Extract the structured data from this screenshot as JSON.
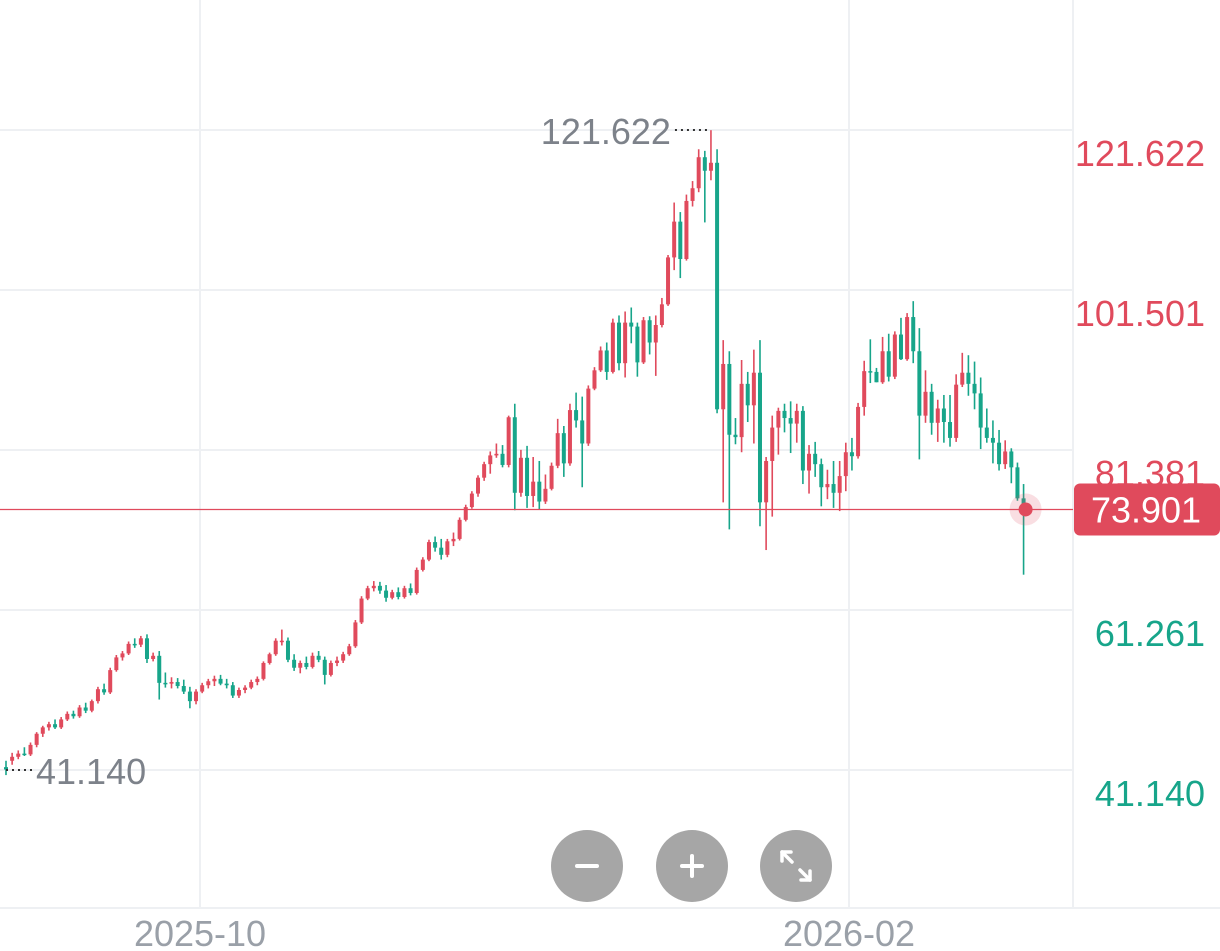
{
  "chart_data": {
    "type": "candlestick",
    "y_axis": {
      "ticks": [
        121.622,
        101.501,
        81.381,
        61.261,
        41.14
      ],
      "tick_labels": [
        "121.622",
        "101.501",
        "81.381",
        "61.261",
        "41.140"
      ],
      "grid": true
    },
    "x_axis": {
      "ticks": [
        "2025-10",
        "2026-02"
      ],
      "grid": true
    },
    "current_price": {
      "value": 73.901,
      "label": "73.901"
    },
    "max_marker": {
      "value": 121.622,
      "label": "121.622"
    },
    "min_marker": {
      "value": 41.14,
      "label": "41.140"
    },
    "up_color": "#e04a5c",
    "down_color": "#17a58a",
    "candles": [
      [
        41.5,
        42.3,
        40.5,
        41.2
      ],
      [
        42.3,
        43.3,
        41.8,
        42.8
      ],
      [
        42.8,
        43.6,
        42.5,
        43.2
      ],
      [
        43.2,
        44.0,
        42.9,
        43.1
      ],
      [
        43.1,
        44.6,
        42.9,
        44.3
      ],
      [
        44.3,
        45.9,
        44.0,
        45.7
      ],
      [
        45.7,
        46.7,
        45.3,
        46.5
      ],
      [
        46.5,
        47.2,
        46.1,
        46.9
      ],
      [
        46.9,
        47.5,
        46.3,
        46.5
      ],
      [
        46.5,
        47.8,
        46.3,
        47.5
      ],
      [
        47.5,
        48.5,
        47.3,
        48.2
      ],
      [
        48.2,
        48.6,
        47.6,
        47.9
      ],
      [
        47.9,
        49.3,
        47.7,
        49.0
      ],
      [
        49.0,
        49.6,
        48.3,
        48.6
      ],
      [
        48.6,
        50.0,
        48.4,
        49.8
      ],
      [
        49.8,
        51.6,
        49.5,
        51.3
      ],
      [
        51.3,
        52.0,
        50.6,
        50.9
      ],
      [
        50.9,
        54.0,
        50.7,
        53.7
      ],
      [
        53.7,
        55.6,
        53.5,
        55.3
      ],
      [
        55.3,
        56.1,
        54.9,
        55.8
      ],
      [
        55.8,
        57.3,
        55.6,
        57.0
      ],
      [
        57.0,
        57.7,
        56.5,
        56.9
      ],
      [
        56.9,
        58.0,
        56.6,
        57.7
      ],
      [
        57.7,
        58.2,
        54.6,
        55.1
      ],
      [
        55.1,
        55.9,
        54.8,
        55.5
      ],
      [
        55.5,
        56.1,
        50.0,
        52.1
      ],
      [
        52.1,
        53.4,
        51.5,
        52.0
      ],
      [
        52.0,
        52.8,
        51.4,
        52.2
      ],
      [
        52.2,
        52.7,
        51.4,
        51.7
      ],
      [
        51.7,
        52.5,
        50.7,
        51.0
      ],
      [
        51.0,
        51.6,
        48.9,
        49.8
      ],
      [
        49.8,
        51.3,
        49.4,
        51.0
      ],
      [
        51.0,
        52.1,
        50.8,
        51.8
      ],
      [
        51.8,
        52.6,
        51.4,
        52.3
      ],
      [
        52.3,
        53.0,
        51.7,
        52.6
      ],
      [
        52.6,
        53.1,
        51.8,
        52.0
      ],
      [
        52.0,
        52.6,
        51.4,
        51.8
      ],
      [
        51.8,
        52.2,
        50.2,
        50.5
      ],
      [
        50.5,
        51.5,
        50.2,
        51.2
      ],
      [
        51.2,
        51.8,
        50.8,
        51.5
      ],
      [
        51.5,
        52.5,
        51.3,
        52.2
      ],
      [
        52.2,
        52.9,
        51.8,
        52.6
      ],
      [
        52.6,
        54.8,
        52.4,
        54.6
      ],
      [
        54.6,
        55.9,
        54.4,
        55.7
      ],
      [
        55.7,
        57.7,
        55.5,
        57.4
      ],
      [
        57.4,
        58.8,
        56.8,
        57.4
      ],
      [
        57.4,
        57.8,
        54.7,
        55.0
      ],
      [
        55.0,
        55.7,
        53.6,
        54.0
      ],
      [
        54.0,
        54.9,
        53.3,
        54.6
      ],
      [
        54.6,
        55.4,
        53.8,
        54.1
      ],
      [
        54.1,
        55.9,
        53.9,
        55.5
      ],
      [
        55.5,
        56.1,
        54.7,
        55.0
      ],
      [
        55.0,
        55.4,
        51.9,
        53.1
      ],
      [
        53.1,
        54.9,
        52.9,
        54.6
      ],
      [
        54.6,
        55.4,
        54.2,
        54.9
      ],
      [
        54.9,
        56.0,
        54.6,
        55.7
      ],
      [
        55.7,
        57.0,
        55.5,
        56.7
      ],
      [
        56.7,
        60.0,
        56.5,
        59.7
      ],
      [
        59.7,
        63.0,
        59.5,
        62.7
      ],
      [
        62.7,
        64.3,
        62.5,
        64.0
      ],
      [
        64.0,
        64.9,
        63.6,
        64.3
      ],
      [
        64.3,
        64.8,
        63.3,
        63.7
      ],
      [
        63.7,
        64.4,
        62.3,
        62.8
      ],
      [
        62.8,
        63.8,
        62.6,
        63.5
      ],
      [
        63.5,
        64.1,
        62.6,
        62.9
      ],
      [
        62.9,
        64.3,
        62.7,
        64.0
      ],
      [
        64.0,
        64.6,
        63.1,
        63.4
      ],
      [
        63.4,
        66.6,
        63.2,
        66.3
      ],
      [
        66.3,
        67.9,
        66.1,
        67.6
      ],
      [
        67.6,
        70.1,
        67.4,
        69.8
      ],
      [
        69.8,
        70.5,
        68.6,
        69.1
      ],
      [
        69.1,
        70.2,
        67.6,
        68.2
      ],
      [
        68.2,
        70.2,
        67.9,
        69.9
      ],
      [
        69.9,
        71.0,
        69.3,
        70.2
      ],
      [
        70.2,
        72.9,
        70.0,
        72.6
      ],
      [
        72.6,
        74.5,
        72.4,
        74.2
      ],
      [
        74.2,
        76.2,
        74.0,
        75.9
      ],
      [
        75.9,
        78.2,
        75.5,
        77.9
      ],
      [
        77.9,
        79.9,
        77.5,
        79.6
      ],
      [
        79.6,
        81.2,
        78.4,
        80.7
      ],
      [
        80.7,
        82.2,
        80.4,
        80.9
      ],
      [
        80.9,
        82.0,
        79.2,
        79.5
      ],
      [
        79.5,
        85.7,
        79.2,
        85.5
      ],
      [
        85.5,
        87.2,
        73.8,
        76.0
      ],
      [
        76.0,
        81.4,
        75.5,
        80.4
      ],
      [
        80.4,
        81.9,
        74.1,
        75.6
      ],
      [
        75.6,
        80.5,
        74.2,
        77.4
      ],
      [
        77.4,
        80.0,
        73.9,
        74.9
      ],
      [
        74.9,
        78.3,
        74.6,
        76.5
      ],
      [
        76.5,
        79.8,
        76.3,
        79.4
      ],
      [
        79.4,
        85.3,
        79.1,
        83.5
      ],
      [
        83.5,
        84.4,
        78.0,
        79.7
      ],
      [
        79.7,
        87.2,
        79.4,
        86.4
      ],
      [
        86.4,
        88.6,
        84.2,
        85.1
      ],
      [
        85.1,
        88.1,
        76.7,
        82.2
      ],
      [
        82.2,
        89.5,
        81.9,
        89.1
      ],
      [
        89.1,
        91.8,
        88.9,
        91.4
      ],
      [
        91.4,
        94.4,
        91.2,
        93.9
      ],
      [
        93.9,
        94.9,
        90.2,
        91.2
      ],
      [
        91.2,
        97.9,
        91.0,
        97.4
      ],
      [
        97.4,
        98.3,
        91.4,
        92.3
      ],
      [
        92.3,
        98.8,
        90.5,
        97.4
      ],
      [
        97.4,
        99.3,
        94.8,
        96.9
      ],
      [
        96.9,
        97.4,
        90.6,
        92.4
      ],
      [
        92.4,
        98.1,
        92.2,
        97.7
      ],
      [
        97.7,
        98.2,
        93.4,
        94.9
      ],
      [
        94.9,
        98.3,
        90.7,
        97.1
      ],
      [
        97.1,
        100.5,
        96.8,
        99.7
      ],
      [
        99.7,
        105.9,
        99.5,
        105.6
      ],
      [
        105.6,
        112.5,
        104.0,
        110.1
      ],
      [
        110.1,
        111.3,
        103.0,
        105.4
      ],
      [
        105.4,
        113.5,
        105.2,
        112.7
      ],
      [
        112.7,
        115.2,
        112.0,
        114.3
      ],
      [
        114.3,
        119.2,
        113.8,
        118.2
      ],
      [
        118.2,
        119.0,
        110.0,
        116.5
      ],
      [
        116.5,
        121.6,
        115.3,
        117.5
      ],
      [
        117.5,
        119.2,
        86.0,
        86.5
      ],
      [
        86.5,
        95.2,
        74.8,
        92.2
      ],
      [
        92.2,
        93.8,
        71.4,
        83.3
      ],
      [
        83.3,
        85.4,
        82.1,
        83.0
      ],
      [
        83.0,
        92.7,
        81.1,
        89.7
      ],
      [
        89.7,
        91.2,
        84.9,
        87.0
      ],
      [
        87.0,
        94.0,
        82.2,
        91.1
      ],
      [
        91.1,
        95.2,
        71.8,
        74.8
      ],
      [
        74.8,
        80.5,
        68.8,
        80.0
      ],
      [
        80.0,
        85.7,
        73.0,
        84.2
      ],
      [
        84.2,
        86.7,
        80.8,
        86.3
      ],
      [
        86.3,
        87.2,
        83.6,
        85.4
      ],
      [
        85.4,
        87.5,
        81.0,
        84.7
      ],
      [
        84.7,
        87.2,
        82.3,
        86.3
      ],
      [
        86.3,
        86.9,
        77.1,
        78.8
      ],
      [
        78.8,
        82.0,
        75.9,
        80.9
      ],
      [
        80.9,
        82.4,
        78.0,
        79.6
      ],
      [
        79.6,
        80.3,
        74.3,
        76.7
      ],
      [
        76.7,
        78.9,
        75.2,
        77.1
      ],
      [
        77.1,
        80.0,
        74.1,
        76.0
      ],
      [
        76.0,
        80.0,
        73.7,
        78.1
      ],
      [
        78.1,
        82.3,
        76.2,
        81.1
      ],
      [
        81.1,
        82.9,
        78.8,
        80.6
      ],
      [
        80.6,
        87.3,
        80.3,
        86.8
      ],
      [
        86.8,
        92.6,
        85.7,
        91.3
      ],
      [
        91.3,
        95.3,
        89.8,
        91.2
      ],
      [
        91.2,
        91.7,
        89.9,
        89.9
      ],
      [
        89.9,
        95.6,
        89.7,
        93.8
      ],
      [
        93.8,
        96.0,
        90.0,
        90.6
      ],
      [
        90.6,
        96.3,
        90.3,
        95.9
      ],
      [
        95.9,
        98.0,
        92.7,
        92.8
      ],
      [
        92.8,
        98.6,
        92.6,
        98.1
      ],
      [
        98.1,
        100.1,
        92.3,
        93.8
      ],
      [
        93.8,
        96.7,
        80.2,
        85.7
      ],
      [
        85.7,
        91.4,
        84.8,
        88.7
      ],
      [
        88.7,
        89.7,
        83.3,
        84.8
      ],
      [
        84.8,
        87.7,
        82.4,
        86.6
      ],
      [
        86.6,
        88.3,
        82.3,
        84.9
      ],
      [
        84.9,
        88.3,
        81.8,
        82.9
      ],
      [
        82.9,
        90.9,
        82.4,
        89.6
      ],
      [
        89.6,
        93.6,
        89.3,
        91.1
      ],
      [
        91.1,
        93.3,
        88.2,
        89.7
      ],
      [
        89.7,
        92.5,
        86.5,
        88.5
      ],
      [
        88.5,
        90.5,
        81.5,
        84.2
      ],
      [
        84.2,
        86.6,
        82.3,
        82.9
      ],
      [
        82.9,
        85.1,
        79.7,
        82.3
      ],
      [
        82.3,
        83.9,
        78.8,
        79.6
      ],
      [
        79.6,
        82.6,
        79.0,
        81.2
      ],
      [
        81.2,
        81.6,
        77.2,
        79.2
      ],
      [
        79.2,
        79.8,
        75.0,
        75.3
      ],
      [
        75.3,
        77.1,
        65.7,
        73.9
      ]
    ]
  },
  "controls": {
    "zoom_out_icon": "minus-icon",
    "zoom_in_icon": "plus-icon",
    "fullscreen_icon": "expand-icon"
  }
}
